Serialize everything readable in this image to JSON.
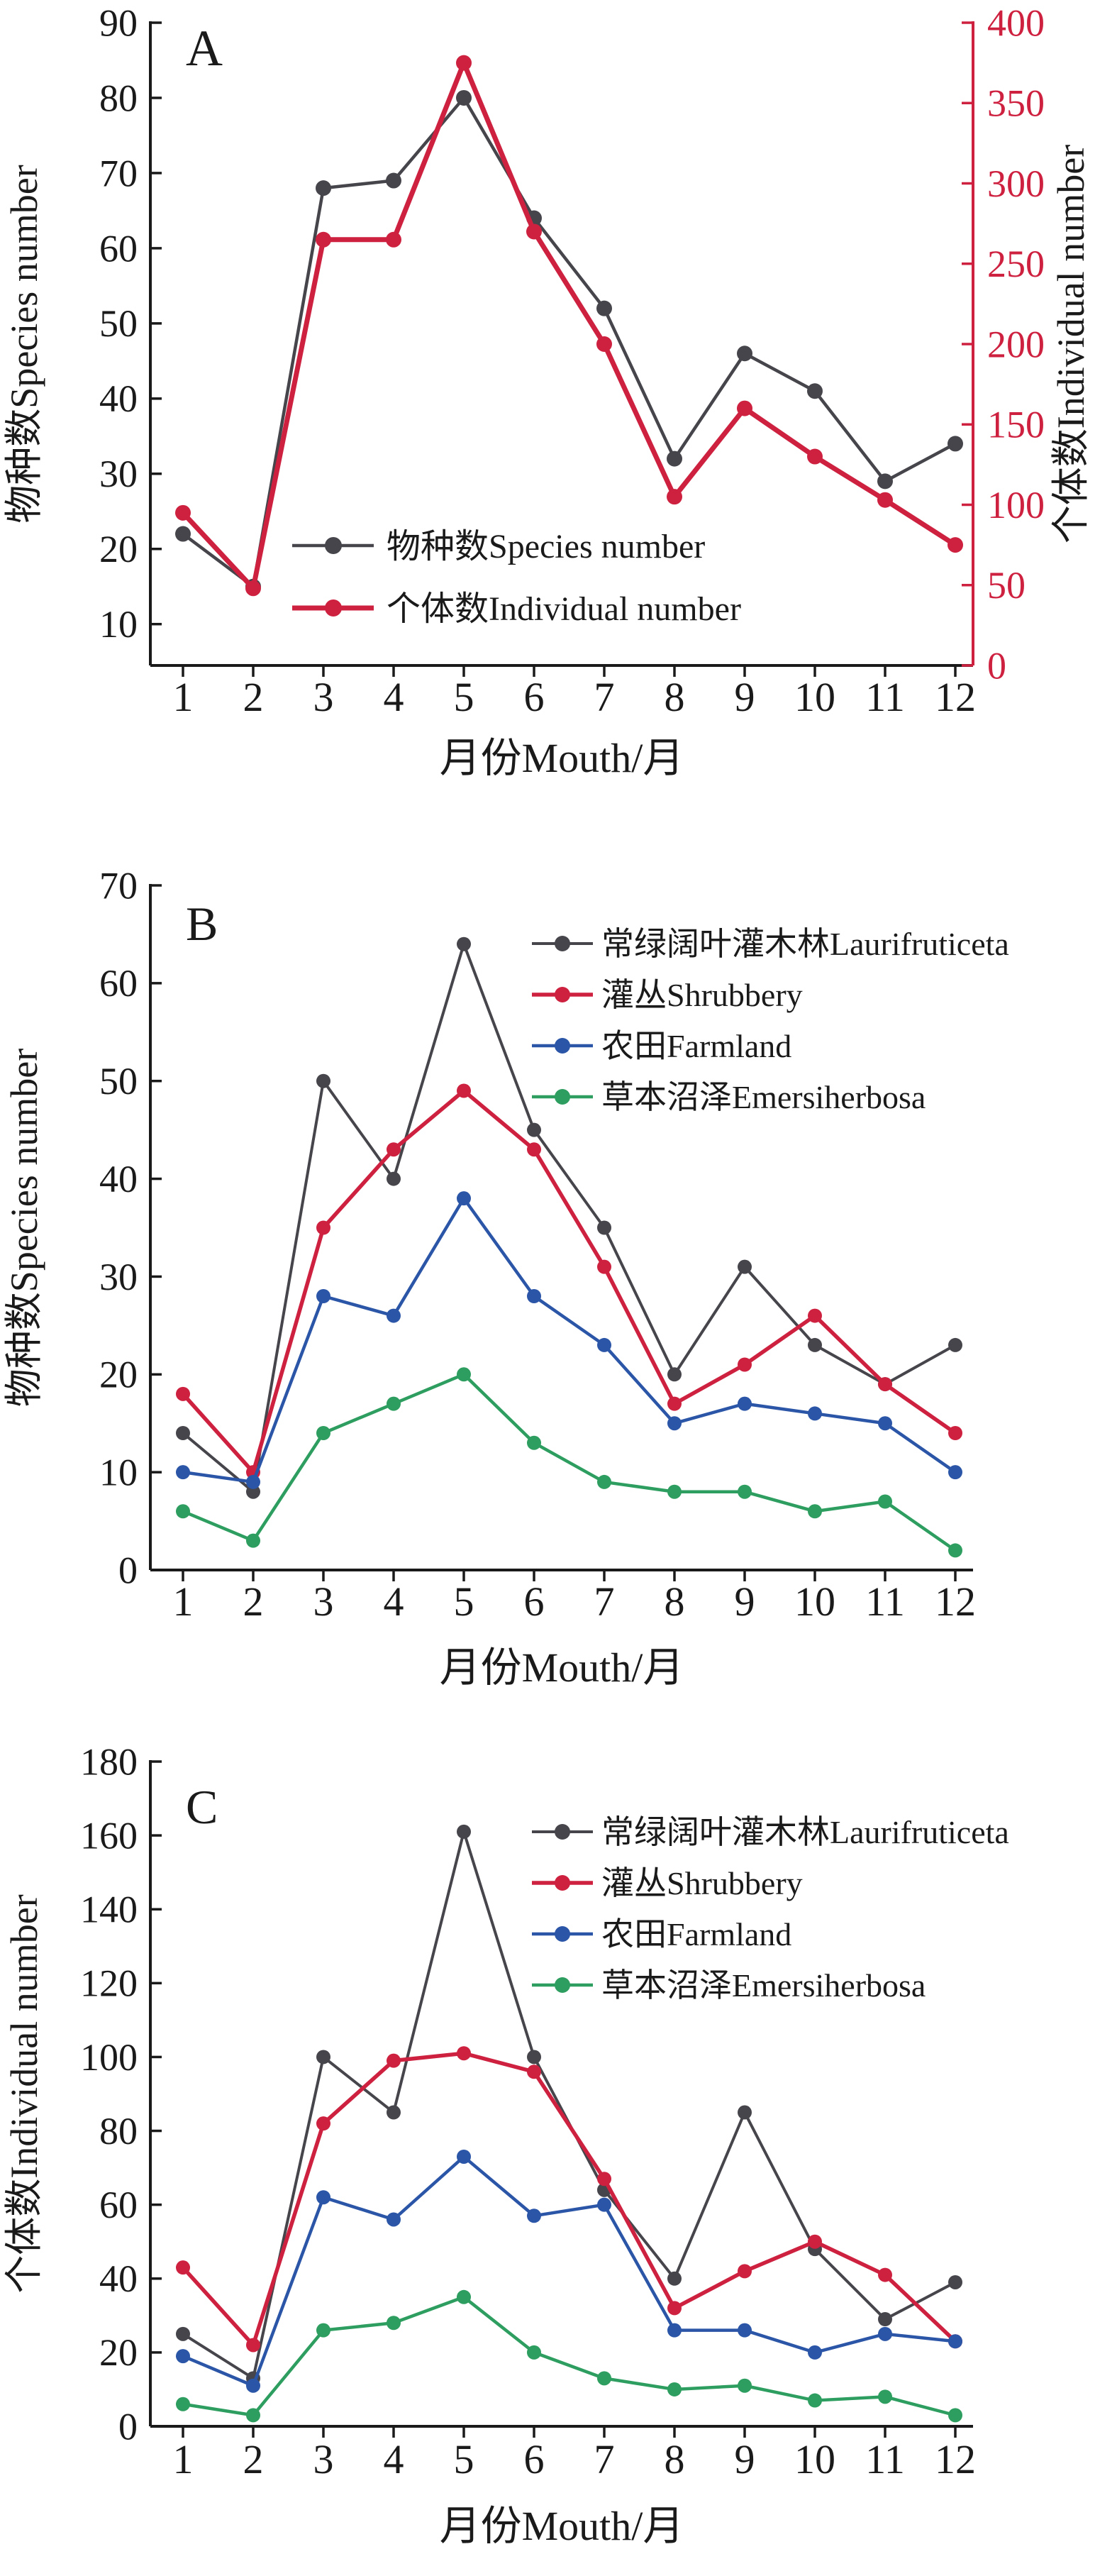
{
  "figure_name": "monthly-bird-species-individuals",
  "chart_data": [
    {
      "type": "line",
      "panel_label": "A",
      "x": [
        1,
        2,
        3,
        4,
        5,
        6,
        7,
        8,
        9,
        10,
        11,
        12
      ],
      "xlabel": "月份Mouth/月",
      "left_axis": {
        "title": "物种数Species number",
        "ticks": [
          10,
          20,
          30,
          40,
          50,
          60,
          70,
          80,
          90
        ],
        "range": [
          4.5,
          90
        ],
        "color": "#1a1a1a"
      },
      "right_axis": {
        "title": "个体数Individual number",
        "ticks": [
          0,
          50,
          100,
          150,
          200,
          250,
          300,
          350,
          400
        ],
        "range": [
          0,
          400
        ],
        "color": "#ce2140"
      },
      "grid": false,
      "legend_position": "inside-lower-middle",
      "series": [
        {
          "name": "物种数Species number",
          "axis": "left",
          "color": "#45454b",
          "line_width": 4.5,
          "values": [
            22,
            15,
            68,
            69,
            80,
            64,
            52,
            32,
            46,
            41,
            29,
            34
          ]
        },
        {
          "name": "个体数Individual number",
          "axis": "right",
          "color": "#ce2140",
          "line_width": 7,
          "values": [
            95,
            48,
            265,
            265,
            375,
            270,
            200,
            105,
            160,
            130,
            103,
            75
          ]
        }
      ]
    },
    {
      "type": "line",
      "panel_label": "B",
      "x": [
        1,
        2,
        3,
        4,
        5,
        6,
        7,
        8,
        9,
        10,
        11,
        12
      ],
      "xlabel": "月份Mouth/月",
      "left_axis": {
        "title": "物种数Species number",
        "ticks": [
          0,
          10,
          20,
          30,
          40,
          50,
          60,
          70
        ],
        "range": [
          0,
          70
        ],
        "color": "#1a1a1a"
      },
      "grid": false,
      "legend_position": "top-right",
      "series": [
        {
          "name": "常绿阔叶灌木林Laurifruticeta",
          "axis": "left",
          "color": "#45454b",
          "line_width": 4,
          "values": [
            14,
            8,
            50,
            40,
            64,
            45,
            35,
            20,
            31,
            23,
            19,
            23
          ]
        },
        {
          "name": "灌丛Shrubbery",
          "axis": "left",
          "color": "#ce2140",
          "line_width": 5.5,
          "values": [
            18,
            10,
            35,
            43,
            49,
            43,
            31,
            17,
            21,
            26,
            19,
            14
          ]
        },
        {
          "name": "农田Farmland",
          "axis": "left",
          "color": "#2b55a7",
          "line_width": 4.5,
          "values": [
            10,
            9,
            28,
            26,
            38,
            28,
            23,
            15,
            17,
            16,
            15,
            10
          ]
        },
        {
          "name": "草本沼泽Emersiherbosa",
          "axis": "left",
          "color": "#2d9e5f",
          "line_width": 4.5,
          "values": [
            6,
            3,
            14,
            17,
            20,
            13,
            9,
            8,
            8,
            6,
            7,
            2
          ]
        }
      ]
    },
    {
      "type": "line",
      "panel_label": "C",
      "x": [
        1,
        2,
        3,
        4,
        5,
        6,
        7,
        8,
        9,
        10,
        11,
        12
      ],
      "xlabel": "月份Mouth/月",
      "left_axis": {
        "title": "个体数Individual number",
        "ticks": [
          0,
          20,
          40,
          60,
          80,
          100,
          120,
          140,
          160,
          180
        ],
        "range": [
          0,
          180
        ],
        "color": "#1a1a1a"
      },
      "grid": false,
      "legend_position": "top-right",
      "series": [
        {
          "name": "常绿阔叶灌木林Laurifruticeta",
          "axis": "left",
          "color": "#45454b",
          "line_width": 4,
          "values": [
            25,
            13,
            100,
            85,
            161,
            100,
            64,
            40,
            85,
            48,
            29,
            39
          ]
        },
        {
          "name": "灌丛Shrubbery",
          "axis": "left",
          "color": "#ce2140",
          "line_width": 5.5,
          "values": [
            43,
            22,
            82,
            99,
            101,
            96,
            67,
            32,
            42,
            50,
            41,
            23
          ]
        },
        {
          "name": "农田Farmland",
          "axis": "left",
          "color": "#2b55a7",
          "line_width": 4.5,
          "values": [
            19,
            11,
            62,
            56,
            73,
            57,
            60,
            26,
            26,
            20,
            25,
            23
          ]
        },
        {
          "name": "草本沼泽Emersiherbosa",
          "axis": "left",
          "color": "#2d9e5f",
          "line_width": 4.5,
          "values": [
            6,
            3,
            26,
            28,
            35,
            20,
            13,
            10,
            11,
            7,
            8,
            3
          ]
        }
      ]
    }
  ]
}
